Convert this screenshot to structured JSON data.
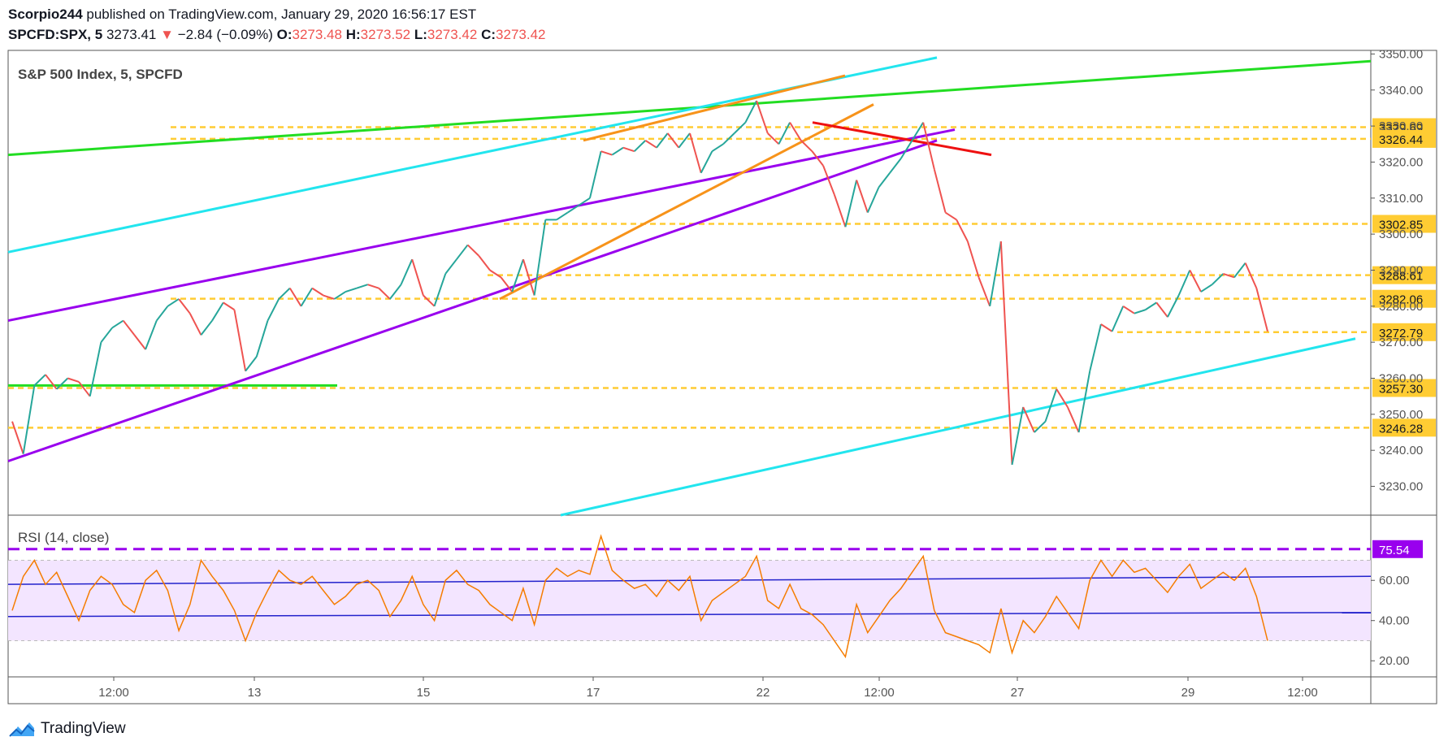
{
  "header": {
    "publisher_line": "Scorpio244 published on TradingView.com, January 29, 2020 16:56:17 EST",
    "author": "Scorpio244",
    "published_text": " published on TradingView.com, January 29, 2020 16:56:17 EST",
    "symbol": "SPCFD:SPX, 5",
    "last": "3273.41",
    "change_arrow": "▼",
    "change": "−2.84 (−0.09%)",
    "o_label": "O:",
    "o": "3273.48",
    "h_label": "H:",
    "h": "3273.52",
    "l_label": "L:",
    "l": "3273.42",
    "c_label": "C:",
    "c": "3273.42"
  },
  "colors": {
    "price_up": "#26a69a",
    "price_down": "#ef5350",
    "green_line": "#22dd22",
    "cyan_line": "#22e5ee",
    "purple_line": "#9900ee",
    "orange_line": "#f7931a",
    "red_line": "#ee1111",
    "level_line": "#ffcc33",
    "rsi_line": "#f57c00",
    "rsi_band": "#f3e5ff",
    "rsi_trend": "#2222cc"
  },
  "brand": {
    "name": "TradingView",
    "icon": "tradingview-cloud-icon"
  },
  "chart_data": [
    {
      "type": "line",
      "title": "S&P 500 Index, 5, SPCFD",
      "xlabel": "",
      "ylabel": "",
      "ylim": [
        3222,
        3351
      ],
      "x_ticks": [
        "12:00",
        "13",
        "15",
        "17",
        "22",
        "12:00",
        "27",
        "29",
        "12:00"
      ],
      "y_ticks": [
        3230,
        3240,
        3250,
        3260,
        3270,
        3280,
        3290,
        3300,
        3310,
        3320,
        3330,
        3340,
        3350
      ],
      "price_labels": [
        "3329.69",
        "3326.44",
        "3302.85",
        "3288.61",
        "3282.06",
        "3272.79",
        "3257.30",
        "3246.28"
      ],
      "levels": [
        3329.69,
        3326.44,
        3302.85,
        3288.61,
        3282.06,
        3272.79,
        3257.3,
        3246.28
      ],
      "series": [
        {
          "values": [
            3248,
            3239,
            3258,
            3261,
            3257,
            3260,
            3259,
            3255,
            3270,
            3274,
            3276,
            3272,
            3268,
            3276,
            3280,
            3282,
            3278,
            3272,
            3276,
            3281,
            3279,
            3262,
            3266,
            3276,
            3282,
            3285,
            3280,
            3285,
            3283,
            3282,
            3284,
            3285,
            3286,
            3285,
            3282,
            3286,
            3293,
            3283,
            3280,
            3289,
            3293,
            3297,
            3294,
            3290,
            3288,
            3284,
            3293,
            3283,
            3304,
            3304,
            3306,
            3308,
            3310,
            3323,
            3322,
            3324,
            3323,
            3326,
            3324,
            3328,
            3324,
            3328,
            3317,
            3323,
            3325,
            3328,
            3331,
            3337,
            3328,
            3325,
            3331,
            3326,
            3323,
            3319,
            3311,
            3302,
            3315,
            3306,
            3313,
            3317,
            3321,
            3326,
            3331,
            3318,
            3306,
            3304,
            3298,
            3288,
            3280,
            3298,
            3236,
            3252,
            3245,
            3248,
            3257,
            3252,
            3245,
            3262,
            3275,
            3273,
            3280,
            3278,
            3279,
            3281,
            3277,
            3283,
            3290,
            3284,
            3286,
            3289,
            3288,
            3292,
            3285,
            3273
          ]
        }
      ]
    },
    {
      "type": "line",
      "title": "RSI (14, close)",
      "xlabel": "",
      "ylabel": "",
      "ylim": [
        12,
        90
      ],
      "y_ticks": [
        20.0,
        40.0,
        60.0
      ],
      "y_tick_labels": [
        "20.00",
        "40.00",
        "60.00"
      ],
      "band": [
        30,
        70
      ],
      "overbought_line": 75.54,
      "overbought_label": "75.54",
      "series": [
        {
          "values": [
            45,
            62,
            70,
            58,
            64,
            52,
            40,
            55,
            62,
            58,
            48,
            44,
            60,
            65,
            55,
            35,
            48,
            70,
            62,
            55,
            45,
            30,
            44,
            55,
            65,
            60,
            58,
            62,
            55,
            48,
            52,
            58,
            60,
            55,
            42,
            50,
            62,
            48,
            40,
            60,
            65,
            58,
            55,
            48,
            44,
            40,
            56,
            38,
            60,
            66,
            62,
            65,
            63,
            82,
            65,
            60,
            56,
            58,
            52,
            60,
            55,
            62,
            40,
            50,
            54,
            58,
            62,
            72,
            50,
            46,
            58,
            46,
            43,
            38,
            30,
            22,
            48,
            34,
            42,
            50,
            56,
            64,
            72,
            45,
            34,
            32,
            30,
            28,
            24,
            46,
            24,
            40,
            34,
            42,
            52,
            44,
            36,
            60,
            70,
            62,
            70,
            64,
            66,
            60,
            54,
            62,
            68,
            56,
            60,
            64,
            60,
            66,
            52,
            30
          ]
        }
      ]
    }
  ]
}
